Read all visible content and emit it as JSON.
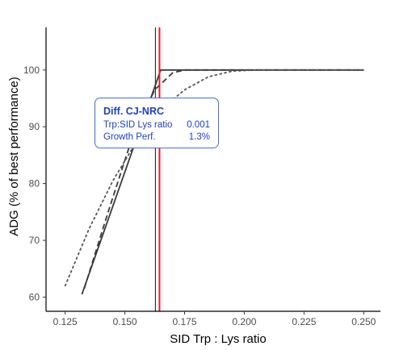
{
  "chart_data": {
    "type": "line",
    "xlabel": "SID Trp : Lys ratio",
    "ylabel": "ADG (% of best performance)",
    "xlim": [
      0.117,
      0.257
    ],
    "ylim": [
      57.5,
      107.5
    ],
    "x_ticks": [
      "0.125",
      "0.150",
      "0.175",
      "0.200",
      "0.225",
      "0.250"
    ],
    "y_ticks": [
      "60",
      "70",
      "80",
      "90",
      "100"
    ],
    "grid": false,
    "series": [
      {
        "line_style": "solid",
        "color": "#3a3a3a",
        "x": [
          0.132,
          0.1625,
          0.165,
          0.25
        ],
        "y": [
          60.5,
          97.0,
          100.0,
          100.0
        ]
      },
      {
        "line_style": "dashed",
        "color": "#3a3a3a",
        "x": [
          0.133,
          0.143,
          0.153,
          0.1625,
          0.17,
          0.175,
          0.25
        ],
        "y": [
          61.5,
          75.0,
          88.0,
          96.5,
          99.5,
          100.0,
          100.0
        ]
      },
      {
        "line_style": "dotted",
        "color": "#555555",
        "x": [
          0.125,
          0.135,
          0.145,
          0.155,
          0.165,
          0.175,
          0.185,
          0.195,
          0.205,
          0.25
        ],
        "y": [
          62.0,
          72.0,
          80.5,
          87.5,
          93.0,
          96.5,
          98.8,
          99.8,
          100.0,
          100.0
        ]
      }
    ],
    "vlines": [
      {
        "x": 0.1628,
        "color": "#333333"
      },
      {
        "x": 0.1645,
        "color": "#e0202e"
      }
    ]
  },
  "tooltip": {
    "title": "Diff. CJ-NRC",
    "rows": [
      {
        "label": "Trp:SID Lys ratio",
        "value": "0.001"
      },
      {
        "label": "Growth Perf.",
        "value": "1.3%"
      }
    ]
  }
}
